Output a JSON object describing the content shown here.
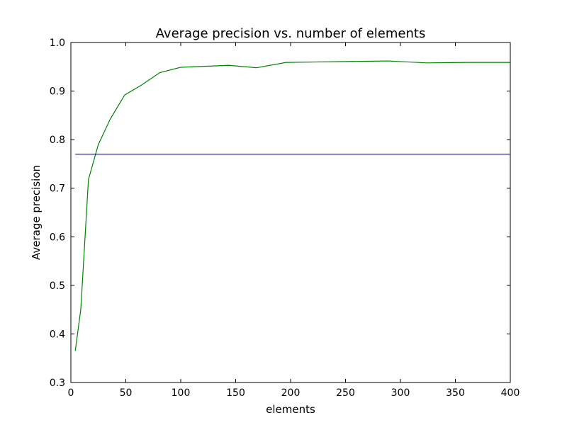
{
  "chart_data": {
    "type": "line",
    "title": "Average precision vs. number of elements",
    "xlabel": "elements",
    "ylabel": "Average precision",
    "xlim": [
      0,
      400
    ],
    "ylim": [
      0.3,
      1.0
    ],
    "xticks": [
      "0",
      "50",
      "100",
      "150",
      "200",
      "250",
      "300",
      "350",
      "400"
    ],
    "yticks": [
      "0.3",
      "0.4",
      "0.5",
      "0.6",
      "0.7",
      "0.8",
      "0.9",
      "1.0"
    ],
    "grid": false,
    "series": [
      {
        "color": "#008000",
        "x": [
          4,
          9,
          16,
          25,
          36,
          49,
          64,
          81,
          100,
          121,
          144,
          169,
          196,
          225,
          256,
          289,
          324,
          361,
          400
        ],
        "y": [
          0.365,
          0.45,
          0.718,
          0.79,
          0.843,
          0.892,
          0.912,
          0.938,
          0.949,
          0.951,
          0.953,
          0.948,
          0.959,
          0.96,
          0.961,
          0.962,
          0.958,
          0.959,
          0.959
        ]
      },
      {
        "color": "#0000ff",
        "x": [
          4,
          400
        ],
        "y": [
          0.77,
          0.77
        ]
      }
    ]
  }
}
